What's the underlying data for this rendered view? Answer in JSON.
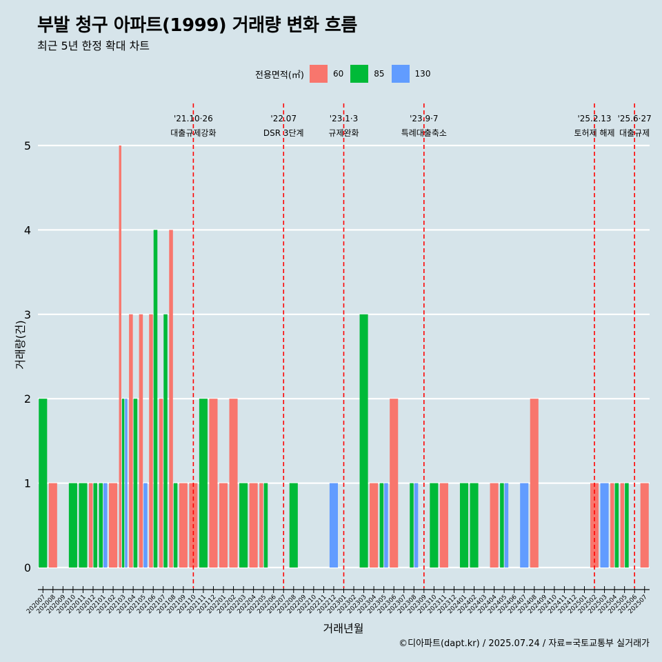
{
  "title": "부발 청구 아파트(1999) 거래량 변화 흐름",
  "subtitle": "최근 5년 한정 확대 차트",
  "caption": "©디아파트(dapt.kr) / 2025.07.24 / 자료=국토교통부 실거래가",
  "legend": {
    "title": "전용면적(㎡)",
    "items": [
      {
        "label": "60",
        "color": "#f8766d"
      },
      {
        "label": "85",
        "color": "#00ba38"
      },
      {
        "label": "130",
        "color": "#619cff"
      }
    ]
  },
  "chart_data": {
    "type": "bar",
    "xlabel": "거래년월",
    "ylabel": "거래량(건)",
    "ylim": [
      0,
      5
    ],
    "yticks": [
      0,
      1,
      2,
      3,
      4,
      5
    ],
    "grid": true,
    "legend_position": "top",
    "categories": [
      "202007",
      "202008",
      "202009",
      "202010",
      "202011",
      "202012",
      "202101",
      "202102",
      "202103",
      "202104",
      "202105",
      "202106",
      "202107",
      "202108",
      "202109",
      "202110",
      "202111",
      "202112",
      "202201",
      "202202",
      "202203",
      "202204",
      "202205",
      "202206",
      "202207",
      "202208",
      "202209",
      "202210",
      "202211",
      "202212",
      "202301",
      "202302",
      "202303",
      "202304",
      "202305",
      "202306",
      "202307",
      "202308",
      "202309",
      "202310",
      "202311",
      "202312",
      "202401",
      "202402",
      "202403",
      "202404",
      "202405",
      "202406",
      "202407",
      "202408",
      "202409",
      "202410",
      "202411",
      "202412",
      "202501",
      "202502",
      "202503",
      "202504",
      "202505",
      "202506",
      "202507"
    ],
    "series": [
      {
        "name": "60",
        "color": "#f8766d",
        "values": [
          0,
          1,
          0,
          0,
          0,
          1,
          0,
          1,
          5,
          3,
          3,
          3,
          2,
          4,
          1,
          1,
          0,
          2,
          1,
          2,
          0,
          1,
          1,
          0,
          0,
          0,
          0,
          0,
          0,
          0,
          0,
          0,
          0,
          1,
          0,
          2,
          0,
          0,
          0,
          0,
          1,
          0,
          0,
          0,
          0,
          1,
          0,
          0,
          0,
          2,
          0,
          0,
          0,
          0,
          0,
          1,
          0,
          1,
          1,
          0,
          1
        ]
      },
      {
        "name": "85",
        "color": "#00ba38",
        "values": [
          2,
          0,
          0,
          1,
          1,
          1,
          1,
          0,
          2,
          2,
          0,
          4,
          3,
          1,
          0,
          0,
          2,
          0,
          0,
          0,
          1,
          0,
          1,
          0,
          0,
          1,
          0,
          0,
          0,
          0,
          0,
          0,
          3,
          0,
          1,
          0,
          0,
          1,
          0,
          1,
          0,
          0,
          1,
          1,
          0,
          0,
          1,
          0,
          0,
          0,
          0,
          0,
          0,
          0,
          0,
          0,
          0,
          1,
          1,
          0,
          0
        ]
      },
      {
        "name": "130",
        "color": "#619cff",
        "values": [
          0,
          0,
          0,
          0,
          0,
          0,
          1,
          0,
          2,
          0,
          1,
          0,
          0,
          0,
          0,
          0,
          0,
          0,
          0,
          0,
          0,
          0,
          0,
          0,
          0,
          0,
          0,
          0,
          0,
          1,
          0,
          0,
          0,
          0,
          1,
          0,
          0,
          1,
          0,
          0,
          0,
          0,
          0,
          0,
          0,
          0,
          1,
          0,
          1,
          0,
          0,
          0,
          0,
          0,
          0,
          0,
          1,
          0,
          0,
          0,
          0
        ]
      }
    ],
    "annotations": [
      {
        "month": "202110",
        "date": "'21.10·26",
        "label": "대출규제강화"
      },
      {
        "month": "202207",
        "date": "'22.07",
        "label": "DSR 3단계"
      },
      {
        "month": "202301",
        "date": "'23.1·3",
        "label": "규제완화"
      },
      {
        "month": "202309",
        "date": "'23.9·7",
        "label": "특례대출축소"
      },
      {
        "month": "202502",
        "date": "'25.2.13",
        "label": "토허제 해제"
      },
      {
        "month": "202506",
        "date": "'25.6·27",
        "label": "대출규제"
      }
    ]
  }
}
